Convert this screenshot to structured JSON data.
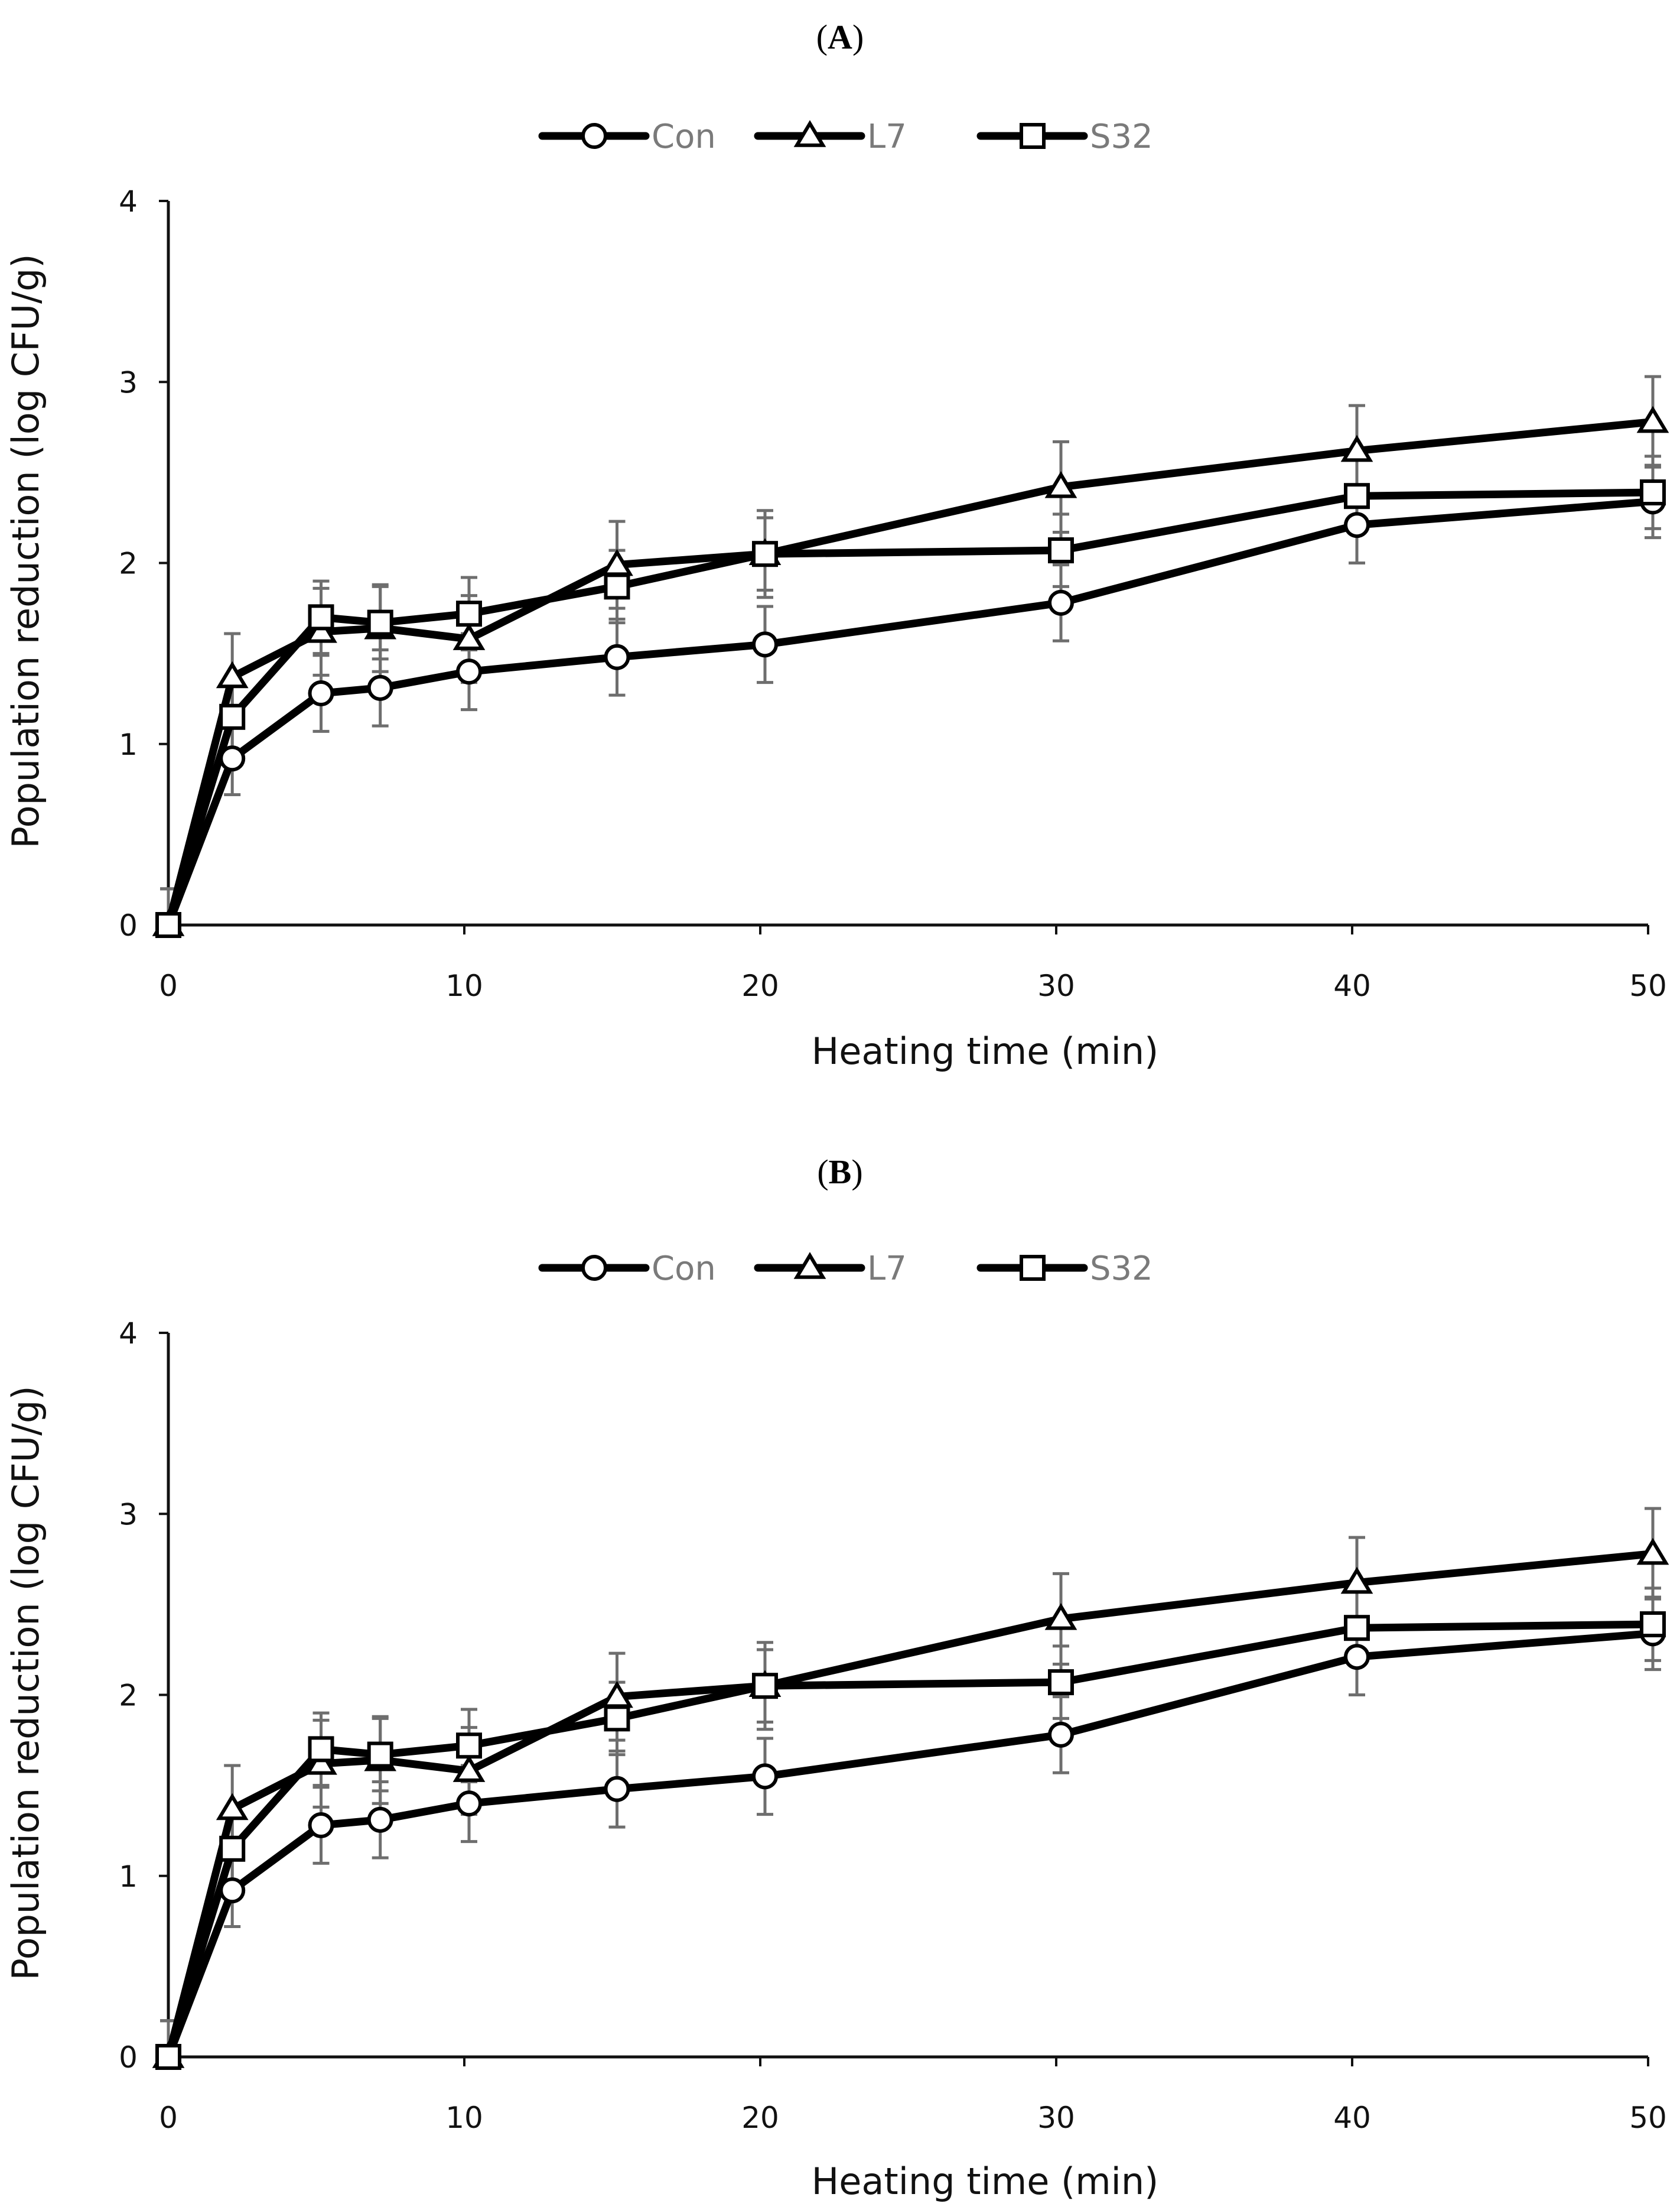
{
  "figure": {
    "panels": [
      {
        "label_open": "(",
        "label_letter": "A",
        "label_close": ")"
      },
      {
        "label_open": "(",
        "label_letter": "B",
        "label_close": ")"
      }
    ]
  },
  "chart_data": [
    {
      "type": "line",
      "title": "(A)",
      "xlabel": "Heating time (min)",
      "ylabel": "Population reduction (log CFU/g)",
      "xlim": [
        0,
        50
      ],
      "ylim": [
        0,
        4
      ],
      "xticks": [
        0,
        10,
        20,
        30,
        40,
        50
      ],
      "yticks": [
        0,
        1,
        2,
        3,
        4
      ],
      "legend_position": "top-center",
      "x": [
        0,
        2,
        5,
        7,
        10,
        15,
        20,
        30,
        40,
        50
      ],
      "series": [
        {
          "name": "Con",
          "marker": "circle",
          "values": [
            0,
            0.92,
            1.28,
            1.31,
            1.4,
            1.48,
            1.55,
            1.78,
            2.21,
            2.34
          ],
          "errors": [
            0.2,
            0.2,
            0.21,
            0.21,
            0.21,
            0.21,
            0.21,
            0.21,
            0.21,
            0.2
          ]
        },
        {
          "name": "L7",
          "marker": "triangle",
          "values": [
            0,
            1.37,
            1.62,
            1.64,
            1.58,
            1.99,
            2.05,
            2.42,
            2.62,
            2.78
          ],
          "errors": [
            0.2,
            0.24,
            0.24,
            0.24,
            0.24,
            0.24,
            0.24,
            0.25,
            0.25,
            0.25
          ]
        },
        {
          "name": "S32",
          "marker": "square",
          "values": [
            0,
            1.15,
            1.7,
            1.67,
            1.72,
            1.87,
            2.05,
            2.07,
            2.37,
            2.39
          ],
          "errors": [
            0.2,
            0.2,
            0.2,
            0.2,
            0.2,
            0.2,
            0.2,
            0.2,
            0.2,
            0.2
          ]
        }
      ]
    },
    {
      "type": "line",
      "title": "(B)",
      "xlabel": "Heating time (min)",
      "ylabel": "Population reduction (log CFU/g)",
      "xlim": [
        0,
        50
      ],
      "ylim": [
        0,
        4
      ],
      "xticks": [
        0,
        10,
        20,
        30,
        40,
        50
      ],
      "yticks": [
        0,
        1,
        2,
        3,
        4
      ],
      "legend_position": "top-center",
      "x": [
        0,
        2,
        5,
        7,
        10,
        15,
        20,
        30,
        40,
        50
      ],
      "series": [
        {
          "name": "Con",
          "marker": "circle",
          "values": [
            0,
            0.92,
            1.28,
            1.31,
            1.4,
            1.48,
            1.55,
            1.78,
            2.21,
            2.34
          ],
          "errors": [
            0.2,
            0.2,
            0.21,
            0.21,
            0.21,
            0.21,
            0.21,
            0.21,
            0.21,
            0.2
          ]
        },
        {
          "name": "L7",
          "marker": "triangle",
          "values": [
            0,
            1.37,
            1.62,
            1.64,
            1.58,
            1.99,
            2.05,
            2.42,
            2.62,
            2.78
          ],
          "errors": [
            0.2,
            0.24,
            0.24,
            0.24,
            0.24,
            0.24,
            0.24,
            0.25,
            0.25,
            0.25
          ]
        },
        {
          "name": "S32",
          "marker": "square",
          "values": [
            0,
            1.15,
            1.7,
            1.67,
            1.72,
            1.87,
            2.05,
            2.07,
            2.37,
            2.39
          ],
          "errors": [
            0.2,
            0.2,
            0.2,
            0.2,
            0.2,
            0.2,
            0.2,
            0.2,
            0.2,
            0.2
          ]
        }
      ]
    }
  ]
}
